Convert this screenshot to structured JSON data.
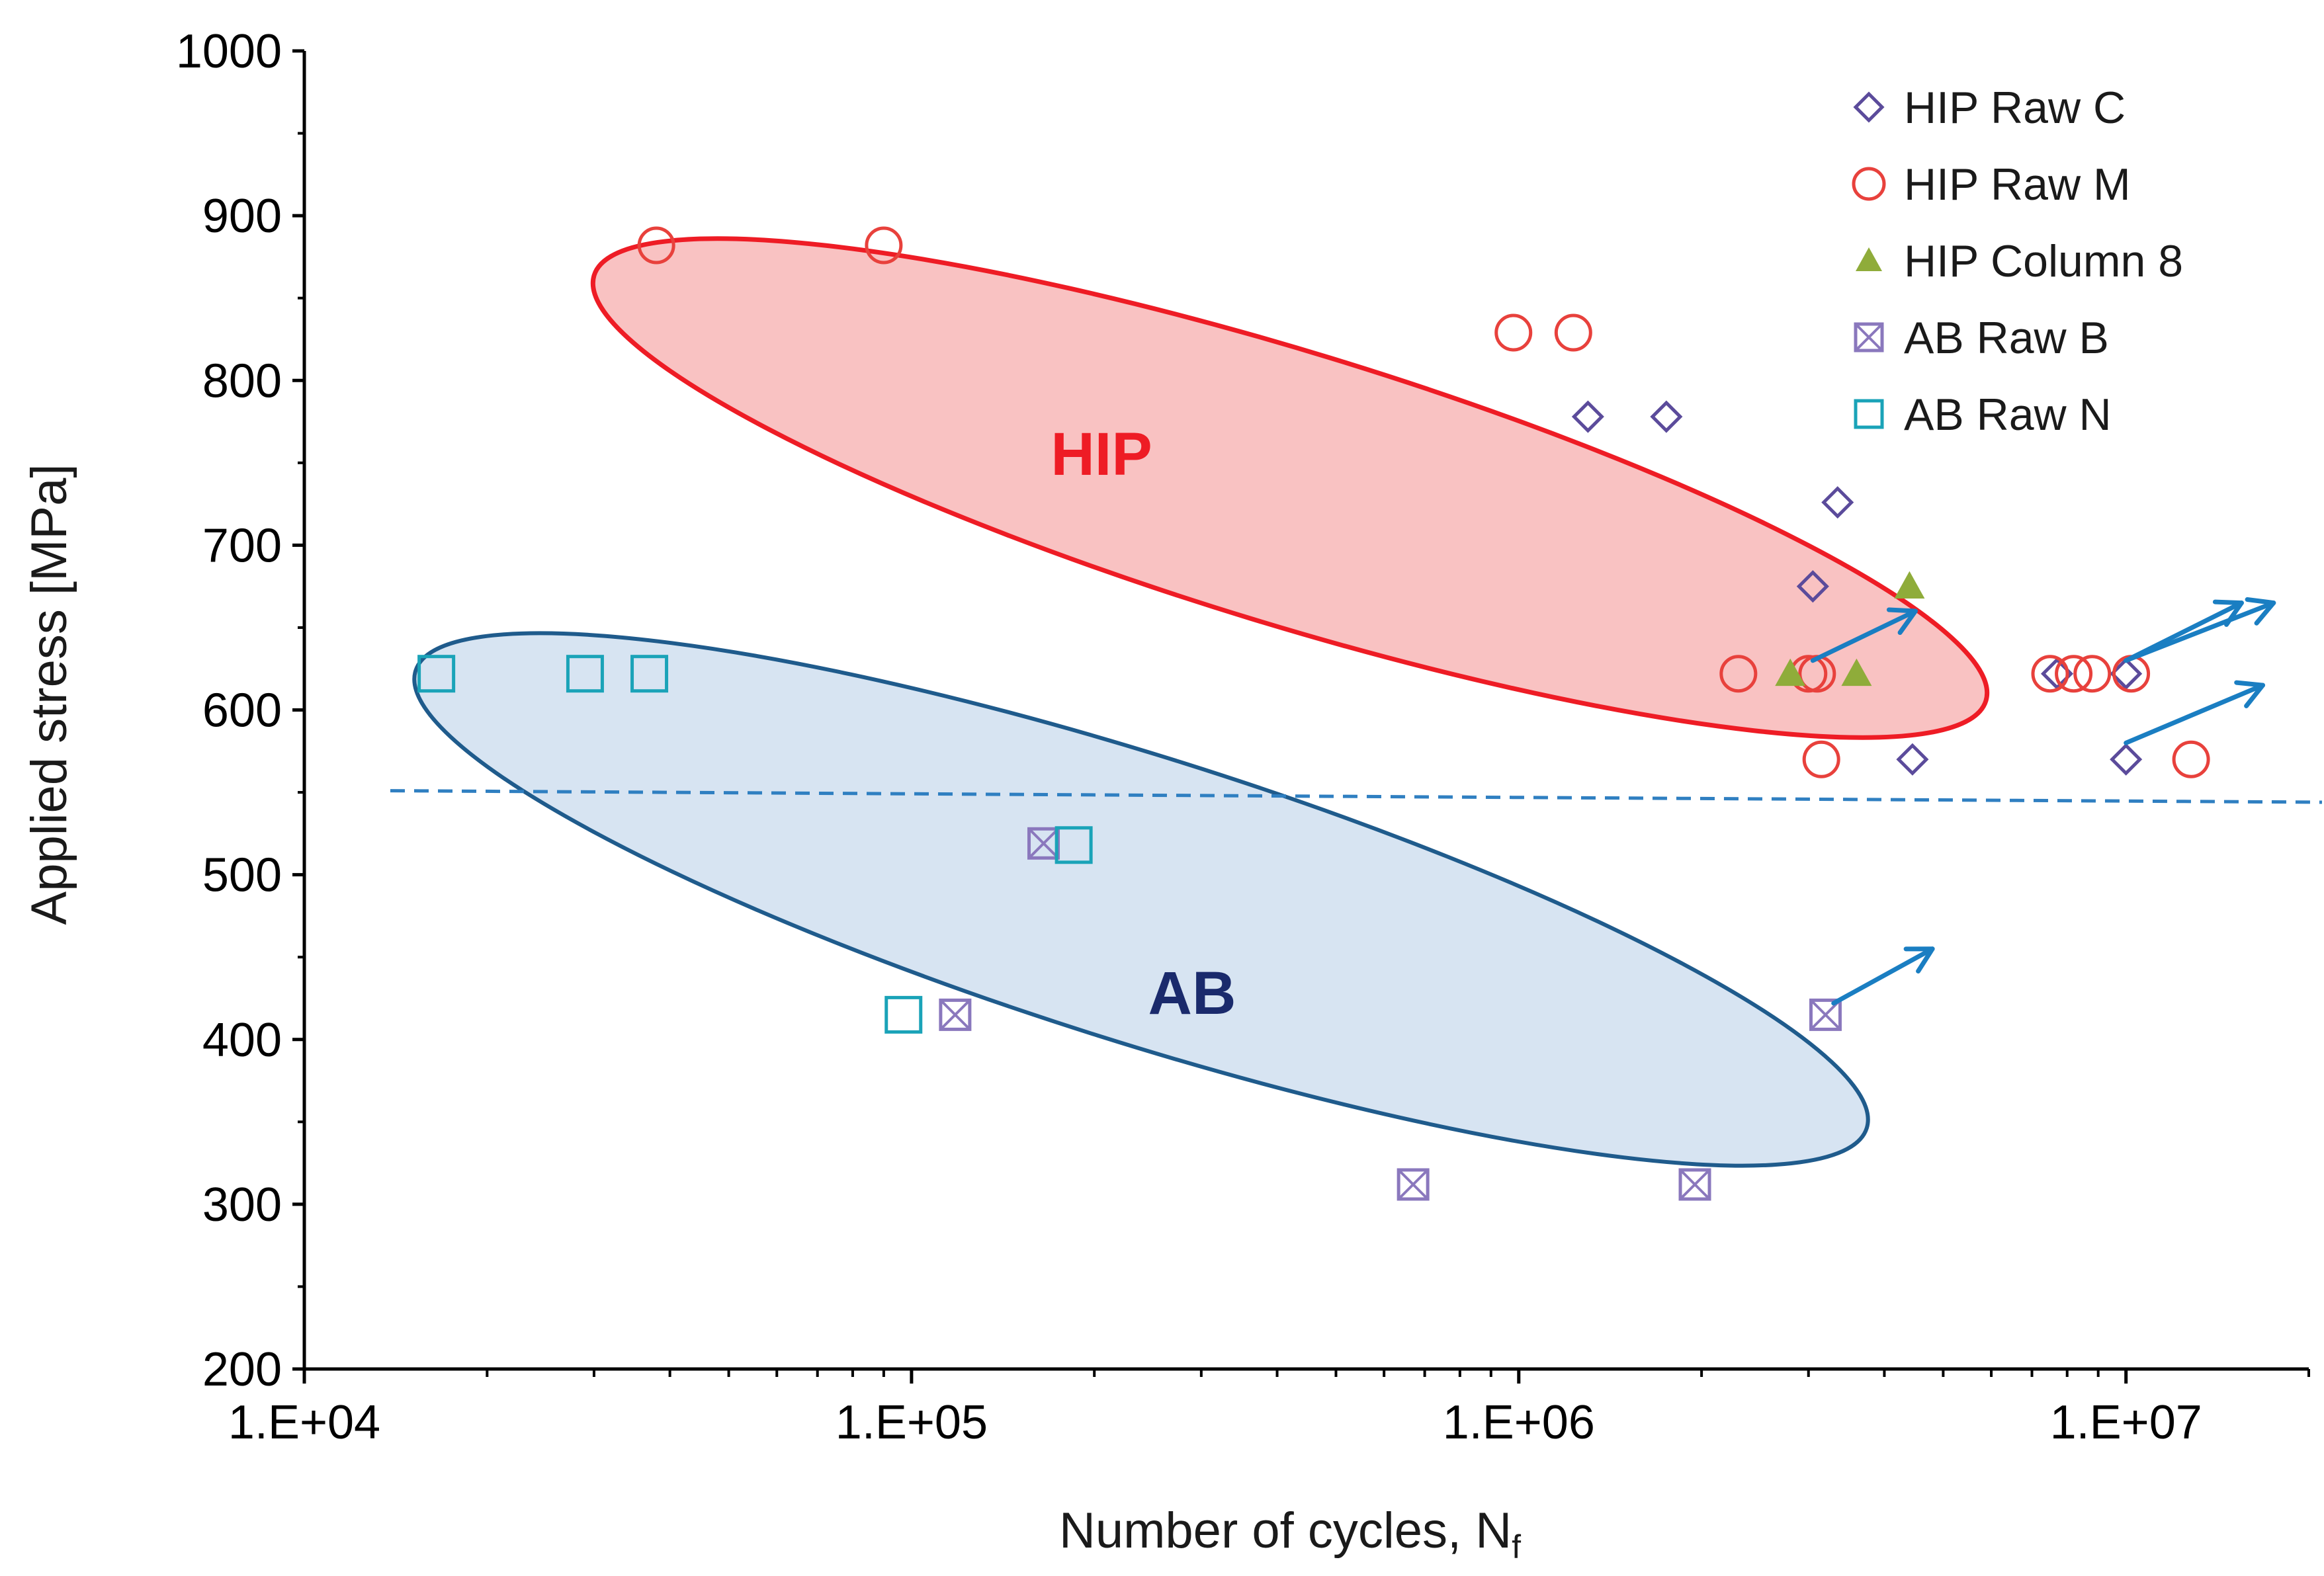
{
  "chart_data": {
    "type": "scatter",
    "title": "",
    "xlabel": "Number of cycles, N",
    "xlabel_subscript": "f",
    "ylabel": "Applied stress [MPa]",
    "xscale": "log",
    "xlim": [
      10000,
      20000000
    ],
    "ylim": [
      200,
      1000
    ],
    "x_ticks": [
      {
        "value": 10000,
        "label": "1.E+04"
      },
      {
        "value": 100000,
        "label": "1.E+05"
      },
      {
        "value": 1000000,
        "label": "1.E+06"
      },
      {
        "value": 10000000,
        "label": "1.E+07"
      }
    ],
    "y_ticks": [
      {
        "value": 200,
        "label": "200"
      },
      {
        "value": 300,
        "label": "300"
      },
      {
        "value": 400,
        "label": "400"
      },
      {
        "value": 500,
        "label": "500"
      },
      {
        "value": 600,
        "label": "600"
      },
      {
        "value": 700,
        "label": "700"
      },
      {
        "value": 800,
        "label": "800"
      },
      {
        "value": 900,
        "label": "900"
      },
      {
        "value": 1000,
        "label": "1000"
      }
    ],
    "legend_position": "top-right",
    "series": [
      {
        "name": "HIP Raw C",
        "marker": "diamond",
        "color": "#5b4b9b",
        "points": [
          [
            1300000,
            778
          ],
          [
            1750000,
            778
          ],
          [
            3350000,
            726
          ],
          [
            3050000,
            675
          ],
          [
            4450000,
            570
          ],
          [
            7700000,
            622
          ],
          [
            10000000,
            622
          ],
          [
            10000000,
            570
          ]
        ]
      },
      {
        "name": "HIP Raw M",
        "marker": "circle",
        "color": "#e8413c",
        "points": [
          [
            38000,
            882
          ],
          [
            90000,
            882
          ],
          [
            980000,
            829
          ],
          [
            1230000,
            829
          ],
          [
            2300000,
            622
          ],
          [
            3000000,
            622
          ],
          [
            3100000,
            622
          ],
          [
            3150000,
            570
          ],
          [
            7500000,
            622
          ],
          [
            8200000,
            622
          ],
          [
            8800000,
            622
          ],
          [
            10200000,
            622
          ],
          [
            12800000,
            570
          ]
        ]
      },
      {
        "name": "HIP Column 8",
        "marker": "triangle",
        "color": "#8fac3a",
        "points": [
          [
            2800000,
            622
          ],
          [
            3600000,
            622
          ],
          [
            4400000,
            675
          ]
        ]
      },
      {
        "name": "AB Raw B",
        "marker": "square-x",
        "color": "#8a78bd",
        "points": [
          [
            165000,
            519
          ],
          [
            118000,
            415
          ],
          [
            3200000,
            415
          ],
          [
            670000,
            312
          ],
          [
            1950000,
            312
          ]
        ]
      },
      {
        "name": "AB Raw N",
        "marker": "square",
        "color": "#1aa3b8",
        "points": [
          [
            16500,
            622
          ],
          [
            29000,
            622
          ],
          [
            37000,
            622
          ],
          [
            185000,
            518
          ],
          [
            97000,
            415
          ]
        ]
      }
    ],
    "runouts": [
      {
        "from": [
          3050000,
          630
        ],
        "to": [
          4500000,
          660
        ]
      },
      {
        "from": [
          10000000,
          630
        ],
        "to": [
          15500000,
          665
        ]
      },
      {
        "from": [
          10000000,
          630
        ],
        "to": [
          17500000,
          665
        ]
      },
      {
        "from": [
          10000000,
          580
        ],
        "to": [
          16800000,
          615
        ]
      },
      {
        "from": [
          3300000,
          422
        ],
        "to": [
          4800000,
          455
        ]
      }
    ],
    "regions": [
      {
        "label": "HIP",
        "color": "#ee1c25",
        "fill": "#f9c2c2"
      },
      {
        "label": "AB",
        "color": "#1f5b8c",
        "fill": "#d7e4f2",
        "label_color": "#1a2a6c"
      }
    ],
    "reference_line": {
      "style": "dashed",
      "color": "#2f7fc1",
      "from": [
        10000,
        551
      ],
      "to": [
        20000000,
        544
      ]
    }
  }
}
